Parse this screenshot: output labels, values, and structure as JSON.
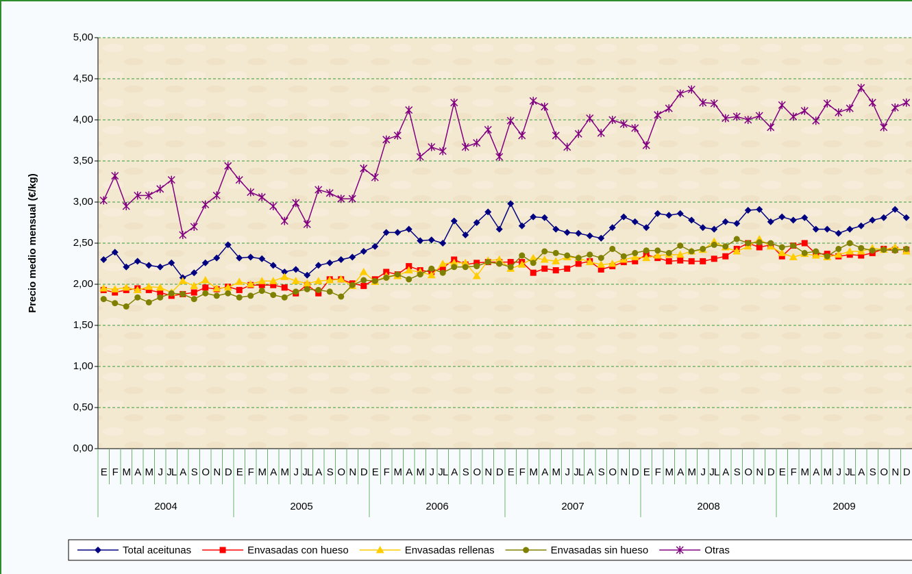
{
  "chart_data": {
    "type": "line",
    "y_label": "Precio medio mensual (€/kg)",
    "categories": [
      "E",
      "F",
      "M",
      "A",
      "M",
      "J",
      "JL",
      "A",
      "S",
      "O",
      "N",
      "D",
      "E",
      "F",
      "M",
      "A",
      "M",
      "J",
      "JL",
      "A",
      "S",
      "O",
      "N",
      "D",
      "E",
      "F",
      "M",
      "A",
      "M",
      "J",
      "JL",
      "A",
      "S",
      "O",
      "N",
      "D",
      "E",
      "F",
      "M",
      "A",
      "M",
      "J",
      "JL",
      "A",
      "S",
      "O",
      "N",
      "D",
      "E",
      "F",
      "M",
      "A",
      "M",
      "J",
      "JL",
      "A",
      "S",
      "O",
      "N",
      "D",
      "E",
      "F",
      "M",
      "A",
      "M",
      "J",
      "JL",
      "A",
      "S",
      "O",
      "N",
      "D"
    ],
    "year_groups": [
      "2004",
      "2005",
      "2006",
      "2007",
      "2008",
      "2009"
    ],
    "ylim": [
      0,
      5
    ],
    "yticks": [
      {
        "value": 0,
        "label": "0,00"
      },
      {
        "value": 0.5,
        "label": "0,50"
      },
      {
        "value": 1,
        "label": "1,00"
      },
      {
        "value": 1.5,
        "label": "1,50"
      },
      {
        "value": 2,
        "label": "2,00"
      },
      {
        "value": 2.5,
        "label": "2,50"
      },
      {
        "value": 3,
        "label": "3,00"
      },
      {
        "value": 3.5,
        "label": "3,50"
      },
      {
        "value": 4,
        "label": "4,00"
      },
      {
        "value": 4.5,
        "label": "4,50"
      },
      {
        "value": 5,
        "label": "5,00"
      }
    ],
    "grid": true,
    "legend": "bottom",
    "series": [
      {
        "name": "Total aceitunas",
        "color": "#000080",
        "marker": "diamond",
        "values": [
          2.3,
          2.39,
          2.21,
          2.28,
          2.23,
          2.21,
          2.26,
          2.08,
          2.14,
          2.26,
          2.32,
          2.48,
          2.32,
          2.33,
          2.31,
          2.23,
          2.15,
          2.18,
          2.11,
          2.23,
          2.26,
          2.3,
          2.33,
          2.4,
          2.46,
          2.63,
          2.63,
          2.67,
          2.53,
          2.54,
          2.5,
          2.77,
          2.6,
          2.75,
          2.88,
          2.67,
          2.98,
          2.71,
          2.82,
          2.81,
          2.67,
          2.63,
          2.62,
          2.59,
          2.56,
          2.69,
          2.82,
          2.76,
          2.69,
          2.86,
          2.84,
          2.86,
          2.78,
          2.69,
          2.67,
          2.76,
          2.74,
          2.9,
          2.91,
          2.76,
          2.82,
          2.78,
          2.81,
          2.67,
          2.67,
          2.62,
          2.67,
          2.71,
          2.78,
          2.81,
          2.91,
          2.81
        ]
      },
      {
        "name": "Envasadas con hueso",
        "color": "#ff0000",
        "marker": "square",
        "values": [
          1.93,
          1.9,
          1.93,
          1.95,
          1.93,
          1.9,
          1.86,
          1.88,
          1.9,
          1.96,
          1.94,
          1.97,
          1.93,
          1.99,
          1.99,
          1.99,
          1.96,
          1.89,
          1.99,
          1.89,
          2.06,
          2.06,
          2.01,
          1.98,
          2.06,
          2.15,
          2.12,
          2.22,
          2.17,
          2.15,
          2.2,
          2.3,
          2.24,
          2.26,
          2.27,
          2.27,
          2.27,
          2.27,
          2.14,
          2.19,
          2.17,
          2.19,
          2.25,
          2.28,
          2.18,
          2.22,
          2.27,
          2.28,
          2.36,
          2.32,
          2.28,
          2.29,
          2.28,
          2.28,
          2.31,
          2.34,
          2.43,
          2.5,
          2.45,
          2.48,
          2.34,
          2.47,
          2.5,
          2.37,
          2.37,
          2.34,
          2.36,
          2.35,
          2.38,
          2.43,
          2.42,
          2.42
        ]
      },
      {
        "name": "Envasadas rellenas",
        "color": "#ffcc00",
        "marker": "triangle",
        "values": [
          1.95,
          1.94,
          1.96,
          1.93,
          1.97,
          1.96,
          1.9,
          2.04,
          1.98,
          2.05,
          1.95,
          1.96,
          2.03,
          2.0,
          2.04,
          2.04,
          2.09,
          2.04,
          2.01,
          2.04,
          2.05,
          2.06,
          1.98,
          2.15,
          2.03,
          2.1,
          2.1,
          2.17,
          2.15,
          2.11,
          2.25,
          2.26,
          2.26,
          2.1,
          2.29,
          2.3,
          2.19,
          2.24,
          2.32,
          2.3,
          2.28,
          2.33,
          2.32,
          2.27,
          2.24,
          2.25,
          2.3,
          2.33,
          2.32,
          2.35,
          2.36,
          2.36,
          2.4,
          2.42,
          2.52,
          2.45,
          2.4,
          2.46,
          2.55,
          2.46,
          2.38,
          2.33,
          2.37,
          2.35,
          2.33,
          2.36,
          2.4,
          2.4,
          2.44,
          2.42,
          2.45,
          2.4
        ]
      },
      {
        "name": "Envasadas sin hueso",
        "color": "#808000",
        "marker": "circle",
        "values": [
          1.82,
          1.77,
          1.73,
          1.84,
          1.78,
          1.84,
          1.89,
          1.88,
          1.82,
          1.89,
          1.86,
          1.89,
          1.84,
          1.86,
          1.92,
          1.87,
          1.84,
          1.91,
          1.94,
          1.93,
          1.91,
          1.85,
          1.99,
          2.05,
          2.04,
          2.08,
          2.12,
          2.06,
          2.12,
          2.19,
          2.14,
          2.21,
          2.21,
          2.22,
          2.27,
          2.25,
          2.21,
          2.35,
          2.26,
          2.4,
          2.38,
          2.35,
          2.32,
          2.36,
          2.32,
          2.43,
          2.34,
          2.38,
          2.41,
          2.41,
          2.38,
          2.47,
          2.4,
          2.43,
          2.48,
          2.46,
          2.55,
          2.5,
          2.51,
          2.5,
          2.45,
          2.47,
          2.38,
          2.4,
          2.34,
          2.43,
          2.5,
          2.44,
          2.41,
          2.42,
          2.41,
          2.43
        ]
      },
      {
        "name": "Otras",
        "color": "#800080",
        "marker": "star",
        "values": [
          3.02,
          3.32,
          2.95,
          3.08,
          3.08,
          3.16,
          3.27,
          2.6,
          2.7,
          2.97,
          3.08,
          3.44,
          3.27,
          3.12,
          3.06,
          2.95,
          2.77,
          2.99,
          2.73,
          3.15,
          3.11,
          3.04,
          3.04,
          3.41,
          3.3,
          3.76,
          3.81,
          4.12,
          3.55,
          3.67,
          3.62,
          4.21,
          3.67,
          3.72,
          3.88,
          3.55,
          3.99,
          3.81,
          4.23,
          4.16,
          3.81,
          3.67,
          3.83,
          4.02,
          3.84,
          4.0,
          3.95,
          3.9,
          3.69,
          4.06,
          4.14,
          4.32,
          4.37,
          4.21,
          4.2,
          4.02,
          4.04,
          4.0,
          4.05,
          3.91,
          4.18,
          4.04,
          4.11,
          3.99,
          4.2,
          4.09,
          4.14,
          4.39,
          4.21,
          3.91,
          4.15,
          4.21
        ]
      }
    ]
  }
}
